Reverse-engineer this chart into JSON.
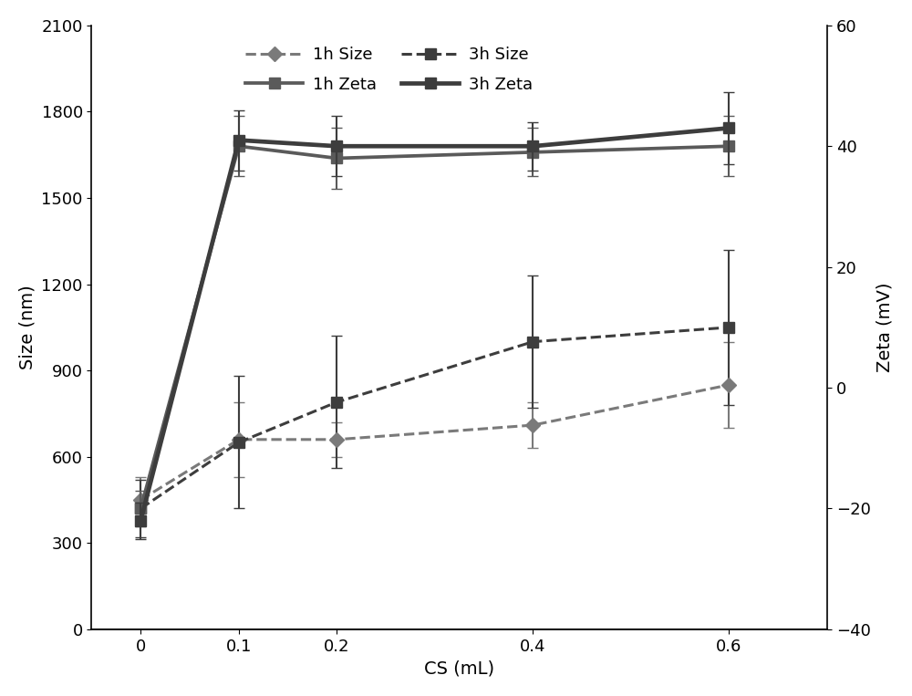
{
  "x": [
    0,
    0.1,
    0.2,
    0.4,
    0.6
  ],
  "size_1h": [
    450,
    660,
    660,
    710,
    850
  ],
  "size_1h_err": [
    80,
    130,
    60,
    80,
    150
  ],
  "size_3h": [
    420,
    650,
    790,
    1000,
    1050
  ],
  "size_3h_err": [
    100,
    230,
    230,
    230,
    270
  ],
  "zeta_1h": [
    -20,
    40,
    38,
    39,
    40
  ],
  "zeta_1h_err": [
    3,
    5,
    5,
    4,
    5
  ],
  "zeta_3h": [
    -22,
    41,
    40,
    40,
    43
  ],
  "zeta_3h_err": [
    3,
    5,
    5,
    4,
    6
  ],
  "size_ylim": [
    0,
    2100
  ],
  "zeta_ylim": [
    -40,
    60
  ],
  "size_yticks": [
    0,
    300,
    600,
    900,
    1200,
    1500,
    1800,
    2100
  ],
  "zeta_yticks": [
    -40,
    -20,
    0,
    20,
    40,
    60
  ],
  "xlabel": "CS (mL)",
  "ylabel_left": "Size (nm)",
  "ylabel_right": "Zeta (mV)",
  "color_size": "#4a4a4a",
  "color_zeta_1h": "#7a7a7a",
  "color_zeta_3h": "#3a3a3a",
  "xticks": [
    0,
    0.1,
    0.2,
    0.4,
    0.6
  ]
}
